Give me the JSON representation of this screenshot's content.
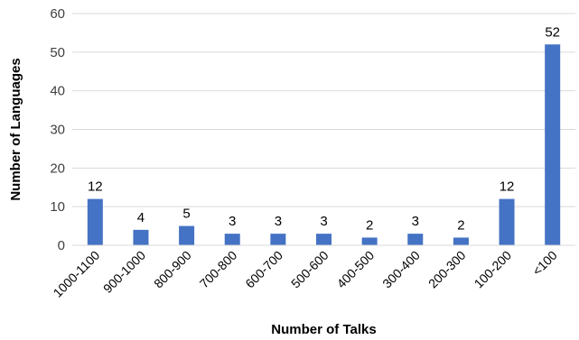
{
  "chart_data": {
    "type": "bar",
    "title": "",
    "xlabel": "Number of Talks",
    "ylabel": "Number of Languages",
    "categories": [
      "1000-1100",
      "900-1000",
      "800-900",
      "700-800",
      "600-700",
      "500-600",
      "400-500",
      "300-400",
      "200-300",
      "100-200",
      "<100"
    ],
    "values": [
      12,
      4,
      5,
      3,
      3,
      3,
      2,
      3,
      2,
      12,
      52
    ],
    "ylim": [
      0,
      60
    ],
    "yticks": [
      0,
      10,
      20,
      30,
      40,
      50,
      60
    ],
    "grid": true,
    "legend": "none",
    "bar_color": "#4472C4"
  }
}
